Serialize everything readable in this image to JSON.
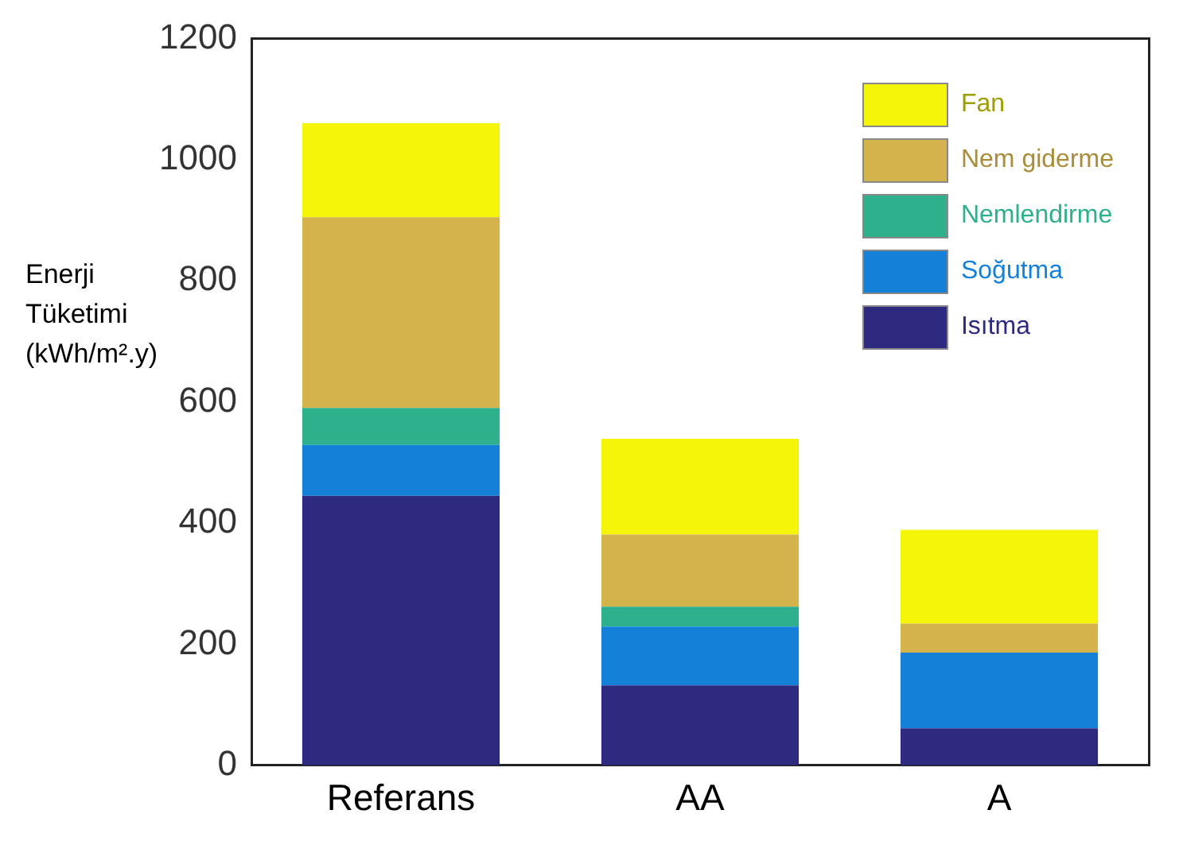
{
  "chart_data": {
    "type": "bar",
    "stacked": true,
    "ylabel": "Enerji Tüketimi (kWh/m².y)",
    "categories": [
      "Referans",
      "AA",
      "A"
    ],
    "series": [
      {
        "name": "Isıtma",
        "color": "#2e2a80",
        "values": [
          445,
          132,
          61
        ]
      },
      {
        "name": "Soğutma",
        "color": "#1480d8",
        "values": [
          84,
          97,
          125
        ]
      },
      {
        "name": "Nemlendirme",
        "color": "#2eb08c",
        "values": [
          61,
          33,
          0
        ]
      },
      {
        "name": "Nem giderme",
        "color": "#d4b24c",
        "values": [
          315,
          119,
          48
        ]
      },
      {
        "name": "Fan",
        "color": "#f5f50a",
        "values": [
          155,
          158,
          155
        ]
      }
    ],
    "ylim": [
      0,
      1200
    ],
    "yticks": [
      0,
      200,
      400,
      600,
      800,
      1000,
      1200
    ],
    "grid": false,
    "legend": "top right"
  }
}
